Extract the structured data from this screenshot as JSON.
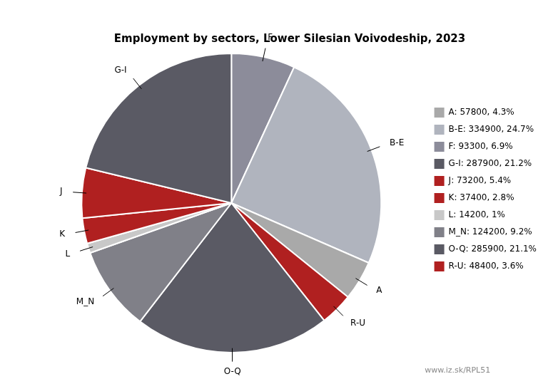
{
  "chart_data": {
    "type": "pie",
    "title": "Employment by sectors, Lower Silesian Voivodeship, 2023",
    "categories": [
      "F",
      "B-E",
      "A",
      "R-U",
      "O-Q",
      "M_N",
      "L",
      "K",
      "J",
      "G-I"
    ],
    "values": [
      93300,
      334900,
      57800,
      48400,
      285900,
      124200,
      14200,
      37400,
      73200,
      287900
    ],
    "colors": [
      "#8c8c9a",
      "#b0b4be",
      "#a9a9a9",
      "#b02020",
      "#5a5a64",
      "#808088",
      "#c8c8c8",
      "#b02020",
      "#b02020",
      "#5a5a64"
    ],
    "legend": "right",
    "legend_labels": [
      "A: 57800, 4.3%",
      "B-E: 334900, 24.7%",
      "F: 93300, 6.9%",
      "G-I: 287900, 21.2%",
      "J: 73200, 5.4%",
      "K: 37400, 2.8%",
      "L: 14200, 1%",
      "M_N: 124200, 9.2%",
      "O-Q: 285900, 21.1%",
      "R-U: 48400, 3.6%"
    ],
    "legend_colors": [
      "#a9a9a9",
      "#b0b4be",
      "#8c8c9a",
      "#5a5a64",
      "#b02020",
      "#b02020",
      "#c8c8c8",
      "#808088",
      "#5a5a64",
      "#b02020"
    ],
    "annotations": [
      "www.iz.sk/RPL51"
    ]
  }
}
